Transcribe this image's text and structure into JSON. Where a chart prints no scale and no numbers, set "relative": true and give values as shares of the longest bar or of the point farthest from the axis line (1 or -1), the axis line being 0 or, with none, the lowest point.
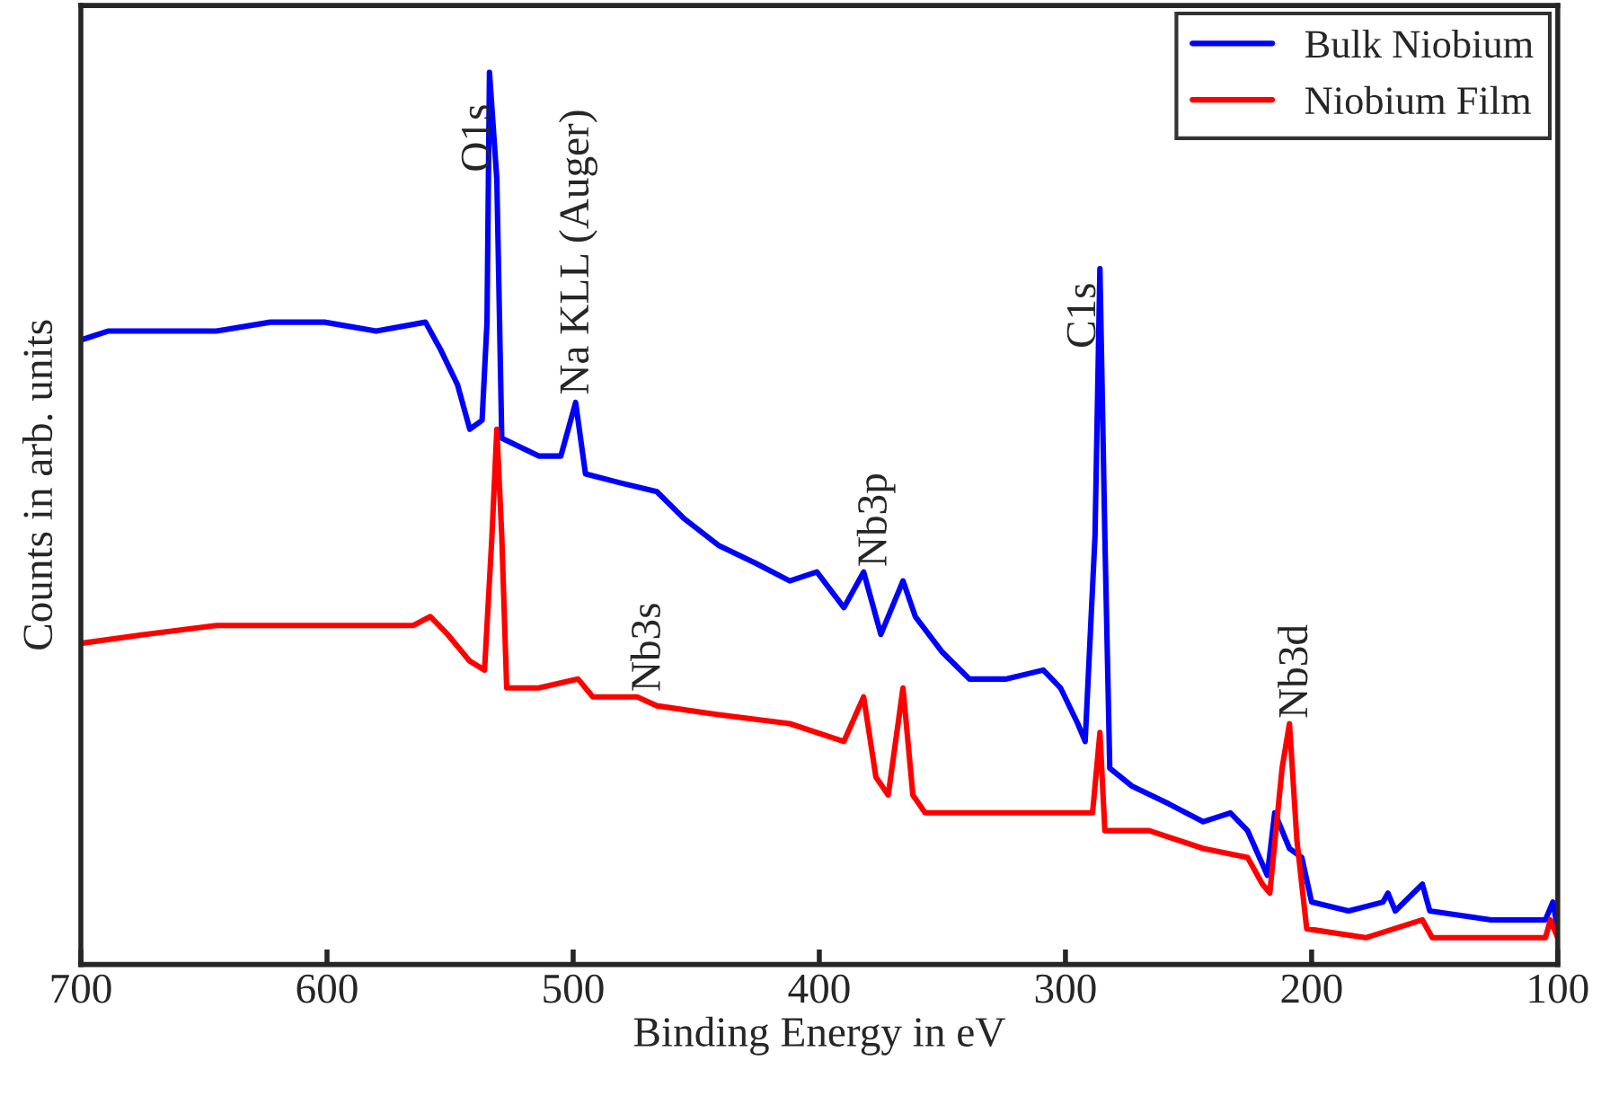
{
  "chart_data": {
    "type": "line",
    "relative": true,
    "xlabel": "Binding Energy in eV",
    "ylabel": "Counts in arb. units",
    "xlim": [
      700,
      100
    ],
    "xticks": [
      700,
      600,
      500,
      400,
      300,
      200,
      100
    ],
    "tick_labels": "x",
    "grid": false,
    "legend": "top right",
    "line_style": "solid",
    "marker": "none",
    "series": [
      {
        "name": "Bulk Niobium",
        "color": "#0000ff",
        "x": [
          700,
          689,
          667,
          645,
          623,
          601,
          580,
          560,
          554,
          547,
          542,
          537,
          535,
          534,
          531,
          529,
          514,
          505,
          499,
          495,
          481,
          466,
          455,
          441,
          426,
          412,
          401,
          390,
          382,
          375,
          366,
          361,
          350,
          339,
          324,
          309,
          302,
          295,
          292,
          288,
          286,
          284,
          282,
          273,
          258,
          244,
          233,
          226,
          218,
          215,
          209,
          204,
          200,
          185,
          171,
          169,
          166,
          155,
          152,
          127,
          105,
          102,
          100
        ],
        "values": [
          0.7,
          0.71,
          0.71,
          0.71,
          0.72,
          0.72,
          0.71,
          0.72,
          0.69,
          0.65,
          0.6,
          0.61,
          0.72,
          1.0,
          0.88,
          0.59,
          0.57,
          0.57,
          0.63,
          0.55,
          0.54,
          0.53,
          0.5,
          0.47,
          0.45,
          0.43,
          0.44,
          0.4,
          0.44,
          0.37,
          0.43,
          0.39,
          0.35,
          0.32,
          0.32,
          0.33,
          0.31,
          0.27,
          0.25,
          0.48,
          0.78,
          0.48,
          0.22,
          0.2,
          0.18,
          0.16,
          0.17,
          0.15,
          0.1,
          0.17,
          0.13,
          0.12,
          0.07,
          0.06,
          0.07,
          0.08,
          0.06,
          0.09,
          0.06,
          0.05,
          0.05,
          0.07,
          0.04
        ]
      },
      {
        "name": "Niobium Film",
        "color": "#ff0000",
        "x": [
          700,
          674,
          645,
          616,
          587,
          565,
          558,
          551,
          542,
          536,
          533,
          531,
          529,
          527,
          514,
          498,
          492,
          474,
          466,
          441,
          412,
          390,
          382,
          377,
          372,
          366,
          362,
          357,
          324,
          295,
          289,
          286,
          284,
          266,
          244,
          226,
          220,
          217,
          212,
          209,
          206,
          202,
          178,
          155,
          151,
          105,
          103,
          100
        ],
        "values": [
          0.36,
          0.37,
          0.38,
          0.38,
          0.38,
          0.38,
          0.39,
          0.37,
          0.34,
          0.33,
          0.48,
          0.6,
          0.48,
          0.31,
          0.31,
          0.32,
          0.3,
          0.3,
          0.29,
          0.28,
          0.27,
          0.25,
          0.3,
          0.21,
          0.19,
          0.31,
          0.19,
          0.17,
          0.17,
          0.17,
          0.17,
          0.26,
          0.15,
          0.15,
          0.13,
          0.12,
          0.09,
          0.08,
          0.22,
          0.27,
          0.14,
          0.04,
          0.03,
          0.05,
          0.03,
          0.03,
          0.05,
          0.03
        ]
      }
    ],
    "annotations": [
      {
        "text": "O1s",
        "x": 534,
        "y": 1.0
      },
      {
        "text": "Na KLL (Auger)",
        "x": 499,
        "y": 0.63
      },
      {
        "text": "Nb3s",
        "x": 474,
        "y": 0.3
      },
      {
        "text": "Nb3p",
        "x": 382,
        "y": 0.44
      },
      {
        "text": "C1s",
        "x": 286,
        "y": 0.78
      },
      {
        "text": "Nb3d",
        "x": 209,
        "y": 0.27
      }
    ]
  }
}
